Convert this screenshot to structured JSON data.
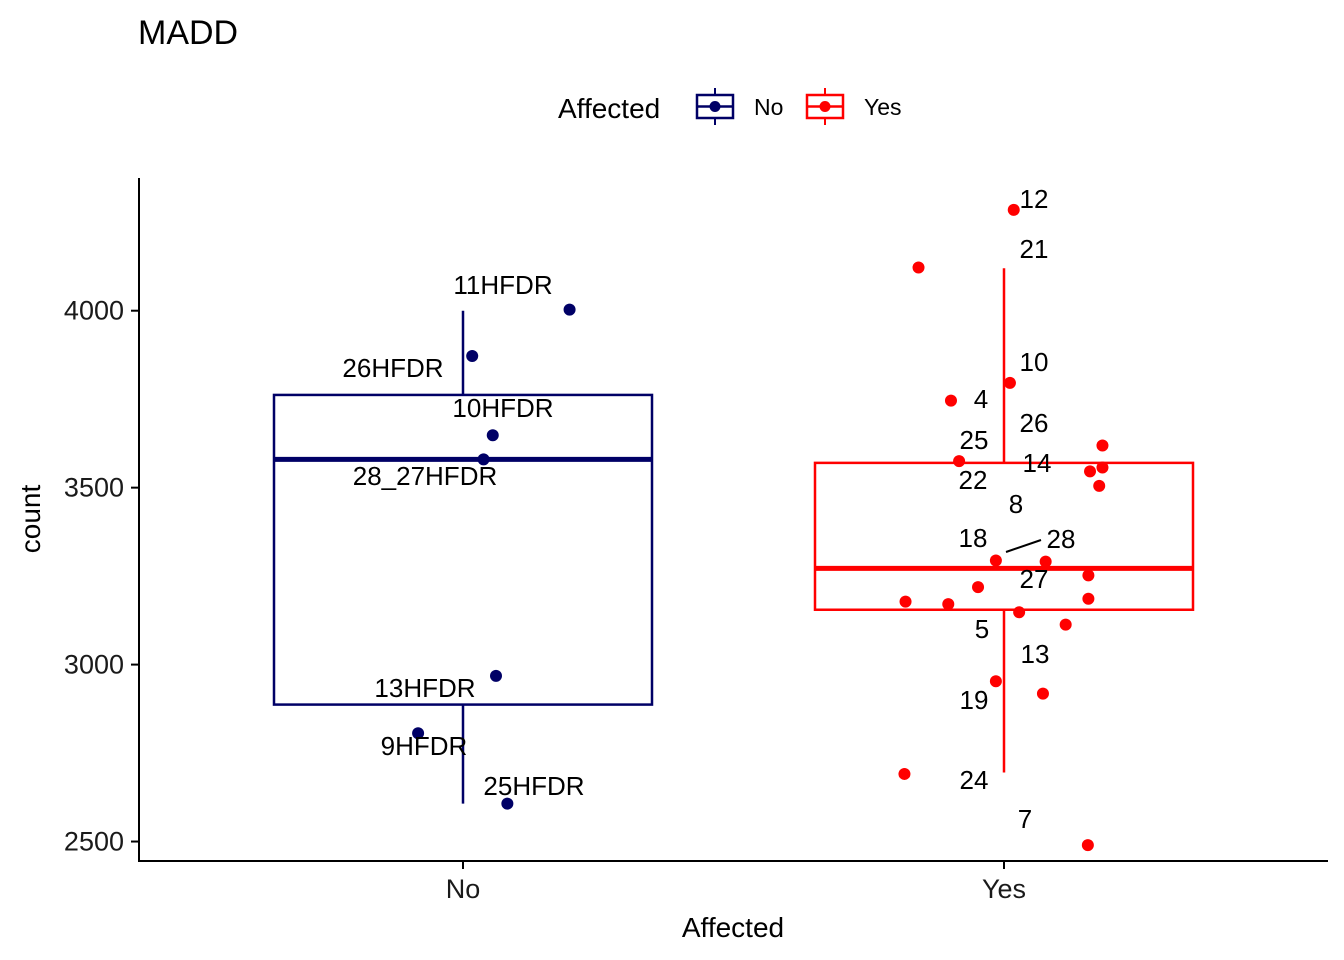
{
  "chart_data": {
    "type": "boxplot",
    "title": "MADD",
    "xlabel": "Affected",
    "ylabel": "count",
    "categories": [
      "No",
      "Yes"
    ],
    "ylim": [
      2445,
      4375
    ],
    "yticks": [
      2500,
      3000,
      3500,
      4000
    ],
    "grid": false,
    "legend": {
      "title": "Affected",
      "position": "top",
      "entries": [
        {
          "label": "No",
          "color": "#000066"
        },
        {
          "label": "Yes",
          "color": "#ff0000"
        }
      ]
    },
    "colors": {
      "No": "#000066",
      "Yes": "#ff0000"
    },
    "boxes": [
      {
        "group": "No",
        "q1": 2887,
        "median": 3580,
        "q3": 3762,
        "whisker_low": 2607,
        "whisker_high": 4000
      },
      {
        "group": "Yes",
        "q1": 3155,
        "median": 3272,
        "q3": 3570,
        "whisker_low": 2695,
        "whisker_high": 4120
      }
    ],
    "points": [
      {
        "group": "No",
        "x": 1.197,
        "y": 4003,
        "label": "11HFDR"
      },
      {
        "group": "No",
        "x": 1.017,
        "y": 3872,
        "label": "26HFDR"
      },
      {
        "group": "No",
        "x": 1.055,
        "y": 3648,
        "label": "10HFDR"
      },
      {
        "group": "No",
        "x": 1.038,
        "y": 3580,
        "label": "28_27HFDR"
      },
      {
        "group": "No",
        "x": 1.061,
        "y": 2968,
        "label": "13HFDR"
      },
      {
        "group": "No",
        "x": 0.917,
        "y": 2806,
        "label": "9HFDR"
      },
      {
        "group": "No",
        "x": 1.082,
        "y": 2607,
        "label": "25HFDR"
      },
      {
        "group": "Yes",
        "x": 2.018,
        "y": 4285,
        "label": "12"
      },
      {
        "group": "Yes",
        "x": 1.842,
        "y": 4122,
        "label": "21"
      },
      {
        "group": "Yes",
        "x": 2.011,
        "y": 3796,
        "label": "10"
      },
      {
        "group": "Yes",
        "x": 1.902,
        "y": 3746,
        "label": "4"
      },
      {
        "group": "Yes",
        "x": 2.182,
        "y": 3619,
        "label": "26"
      },
      {
        "group": "Yes",
        "x": 1.917,
        "y": 3575,
        "label": "25"
      },
      {
        "group": "Yes",
        "x": 2.182,
        "y": 3557,
        "label": "14"
      },
      {
        "group": "Yes",
        "x": 2.159,
        "y": 3546,
        "label": ""
      },
      {
        "group": "Yes",
        "x": 2.176,
        "y": 3505,
        "label": "22"
      },
      {
        "group": "Yes",
        "x": 1.985,
        "y": 3294,
        "label": "18"
      },
      {
        "group": "Yes",
        "x": 2.077,
        "y": 3291,
        "label": "28"
      },
      {
        "group": "Yes",
        "x": 2.156,
        "y": 3252,
        "label": "8"
      },
      {
        "group": "Yes",
        "x": 1.952,
        "y": 3219,
        "label": "27"
      },
      {
        "group": "Yes",
        "x": 2.156,
        "y": 3186,
        "label": ""
      },
      {
        "group": "Yes",
        "x": 1.818,
        "y": 3178,
        "label": ""
      },
      {
        "group": "Yes",
        "x": 1.897,
        "y": 3171,
        "label": ""
      },
      {
        "group": "Yes",
        "x": 2.028,
        "y": 3148,
        "label": "5"
      },
      {
        "group": "Yes",
        "x": 2.114,
        "y": 3113,
        "label": ""
      },
      {
        "group": "Yes",
        "x": 1.985,
        "y": 2953,
        "label": "19"
      },
      {
        "group": "Yes",
        "x": 2.072,
        "y": 2918,
        "label": "13"
      },
      {
        "group": "Yes",
        "x": 1.816,
        "y": 2691,
        "label": "24"
      },
      {
        "group": "Yes",
        "x": 2.155,
        "y": 2490,
        "label": "7"
      }
    ]
  }
}
